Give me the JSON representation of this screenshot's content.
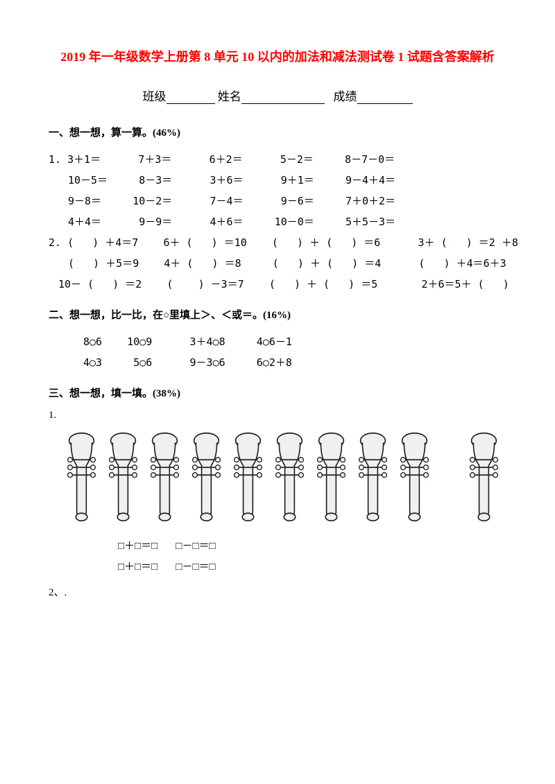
{
  "title": "2019 年一年级数学上册第 8 单元 10 以内的加法和减法测试卷 1 试题含答案解析",
  "header": {
    "class_label": "班级",
    "name_label": "姓名",
    "score_label": "成绩"
  },
  "section1": {
    "heading": "一、想一想，算一算。(46%)",
    "q1_label": "1.",
    "q1_rows": [
      "3＋1＝      7＋3＝      6＋2＝      5－2＝     8－7－0＝",
      "10－5＝     8－3＝      3＋6＝      9＋1＝     9－4＋4＝",
      "9－8＝     10－2＝      7－4＝      9－6＝     7＋0＋2＝",
      "4＋4＝      9－9＝      4＋6＝     10－0＝     5＋5－3＝"
    ],
    "q2_label": "2.",
    "q2_rows": [
      "(   ) ＋4＝7    6＋ (   ) ＝10    (   ) ＋ (   ) ＝6      3＋ (   ) ＝2 ＋8",
      "(   ) ＋5＝9    4＋ (   ) ＝8     (   ) ＋ (   ) ＝4      (   ) ＋4＝6＋3",
      "10－ (   ) ＝2    (    ) －3＝7    (   ) ＋ (   ) ＝5       2＋6＝5＋ (   )"
    ]
  },
  "section2": {
    "heading": "二、想一想，比一比，在○里填上＞、＜或＝。(16%)",
    "rows": [
      "8○6    10○9      3＋4○8     4○6－1",
      "4○3     5○6      9－3○6     6○2＋8"
    ]
  },
  "section3": {
    "heading": "三、想一想，填一填。(38%)",
    "q1_label": "1.",
    "trumpets_group1": 9,
    "trumpets_group2": 1,
    "eq_rows": [
      "□＋□＝□       □－□＝□",
      "□＋□＝□       □－□＝□"
    ],
    "q2_label": "2、."
  },
  "colors": {
    "title": "#ff0000",
    "text": "#000000",
    "background": "#ffffff",
    "trumpet_stroke": "#202020",
    "trumpet_fill": "#f0f0f0"
  }
}
